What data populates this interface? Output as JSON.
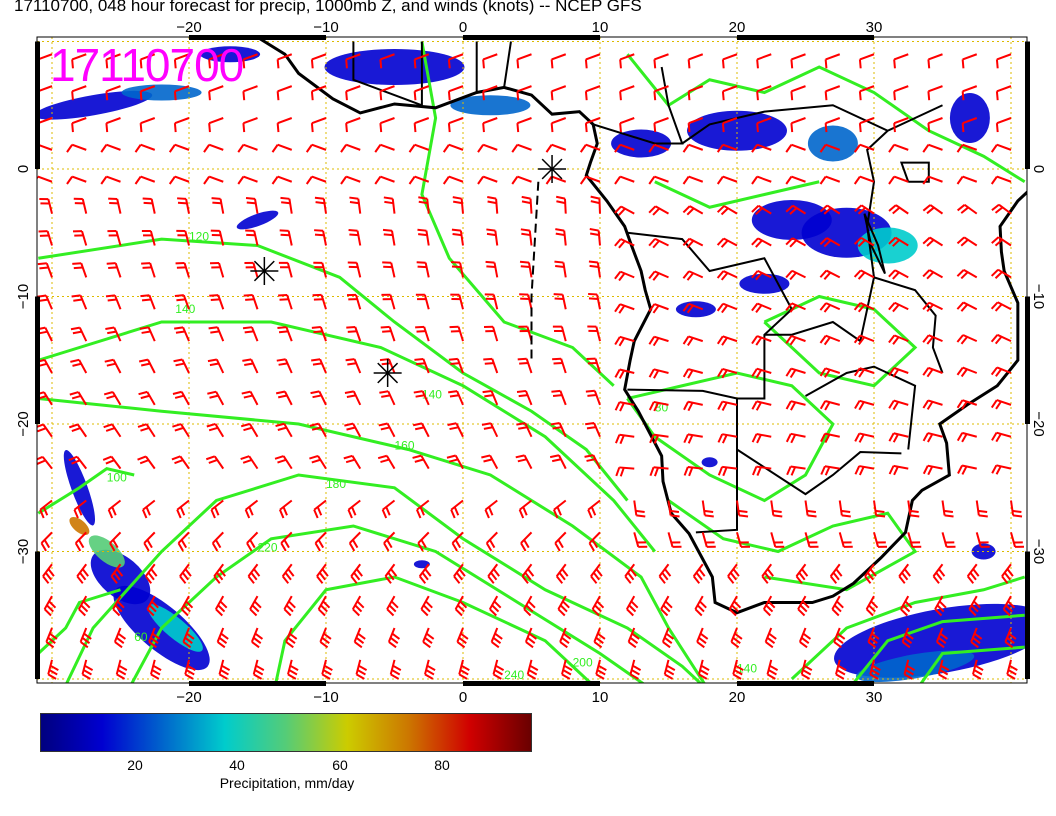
{
  "title": "17110700, 048 hour forecast for precip, 1000mb Z, and winds (knots) -- NCEP GFS",
  "stamp": "17110700",
  "map": {
    "lon_range": [
      -31,
      41
    ],
    "lat_range": [
      -40,
      10
    ],
    "lon_ticks": [
      "−20",
      "−10",
      "0",
      "10",
      "20",
      "30"
    ],
    "lat_ticks": [
      "0",
      "−10",
      "−20",
      "−30"
    ],
    "contour_color": "#33ee22",
    "barb_color": "#ff0000",
    "coast_color": "#000000",
    "grid_color": "#ddbb00",
    "contour_labels": [
      "120",
      "140",
      "160",
      "180",
      "200",
      "220",
      "240",
      "80",
      "60",
      "100"
    ]
  },
  "colorbar": {
    "label": "Precipitation, mm/day",
    "ticks": [
      "20",
      "40",
      "60",
      "80"
    ],
    "range": [
      1,
      97
    ],
    "colors": [
      "#00007f",
      "#0000d0",
      "#0066cc",
      "#00cccc",
      "#55cc77",
      "#cccc00",
      "#cc7700",
      "#d00000",
      "#6a0000"
    ]
  }
}
